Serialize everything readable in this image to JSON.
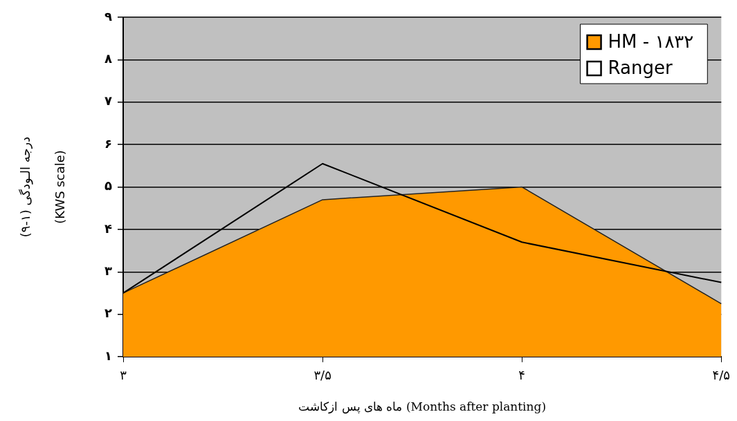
{
  "chart_data": {
    "type": "area",
    "xlabel": "ماه های پس ازکاشت (Months after planting)",
    "ylabel": "درجه الـودگی (۱-۹)\n(KWS scale)",
    "categories": [
      "۳",
      "۳/۵",
      "۴",
      "۴/۵"
    ],
    "series": [
      {
        "name": "HM - ۱۸۳۲",
        "color": "#ff9900",
        "values": [
          2.5,
          4.7,
          5.0,
          2.25
        ]
      },
      {
        "name": "Ranger",
        "type": "line",
        "color": "#000000",
        "values": [
          2.5,
          5.55,
          3.7,
          2.75
        ]
      }
    ],
    "ylim": [
      1,
      9
    ],
    "yticks": [
      {
        "value": 1,
        "label": "۱"
      },
      {
        "value": 2,
        "label": "۲"
      },
      {
        "value": 3,
        "label": "۳"
      },
      {
        "value": 4,
        "label": "۴"
      },
      {
        "value": 5,
        "label": "۵"
      },
      {
        "value": 6,
        "label": "۶"
      },
      {
        "value": 7,
        "label": "۷"
      },
      {
        "value": 8,
        "label": "۸"
      },
      {
        "value": 9,
        "label": "۹"
      }
    ],
    "grid": "y",
    "legend": "top right"
  }
}
